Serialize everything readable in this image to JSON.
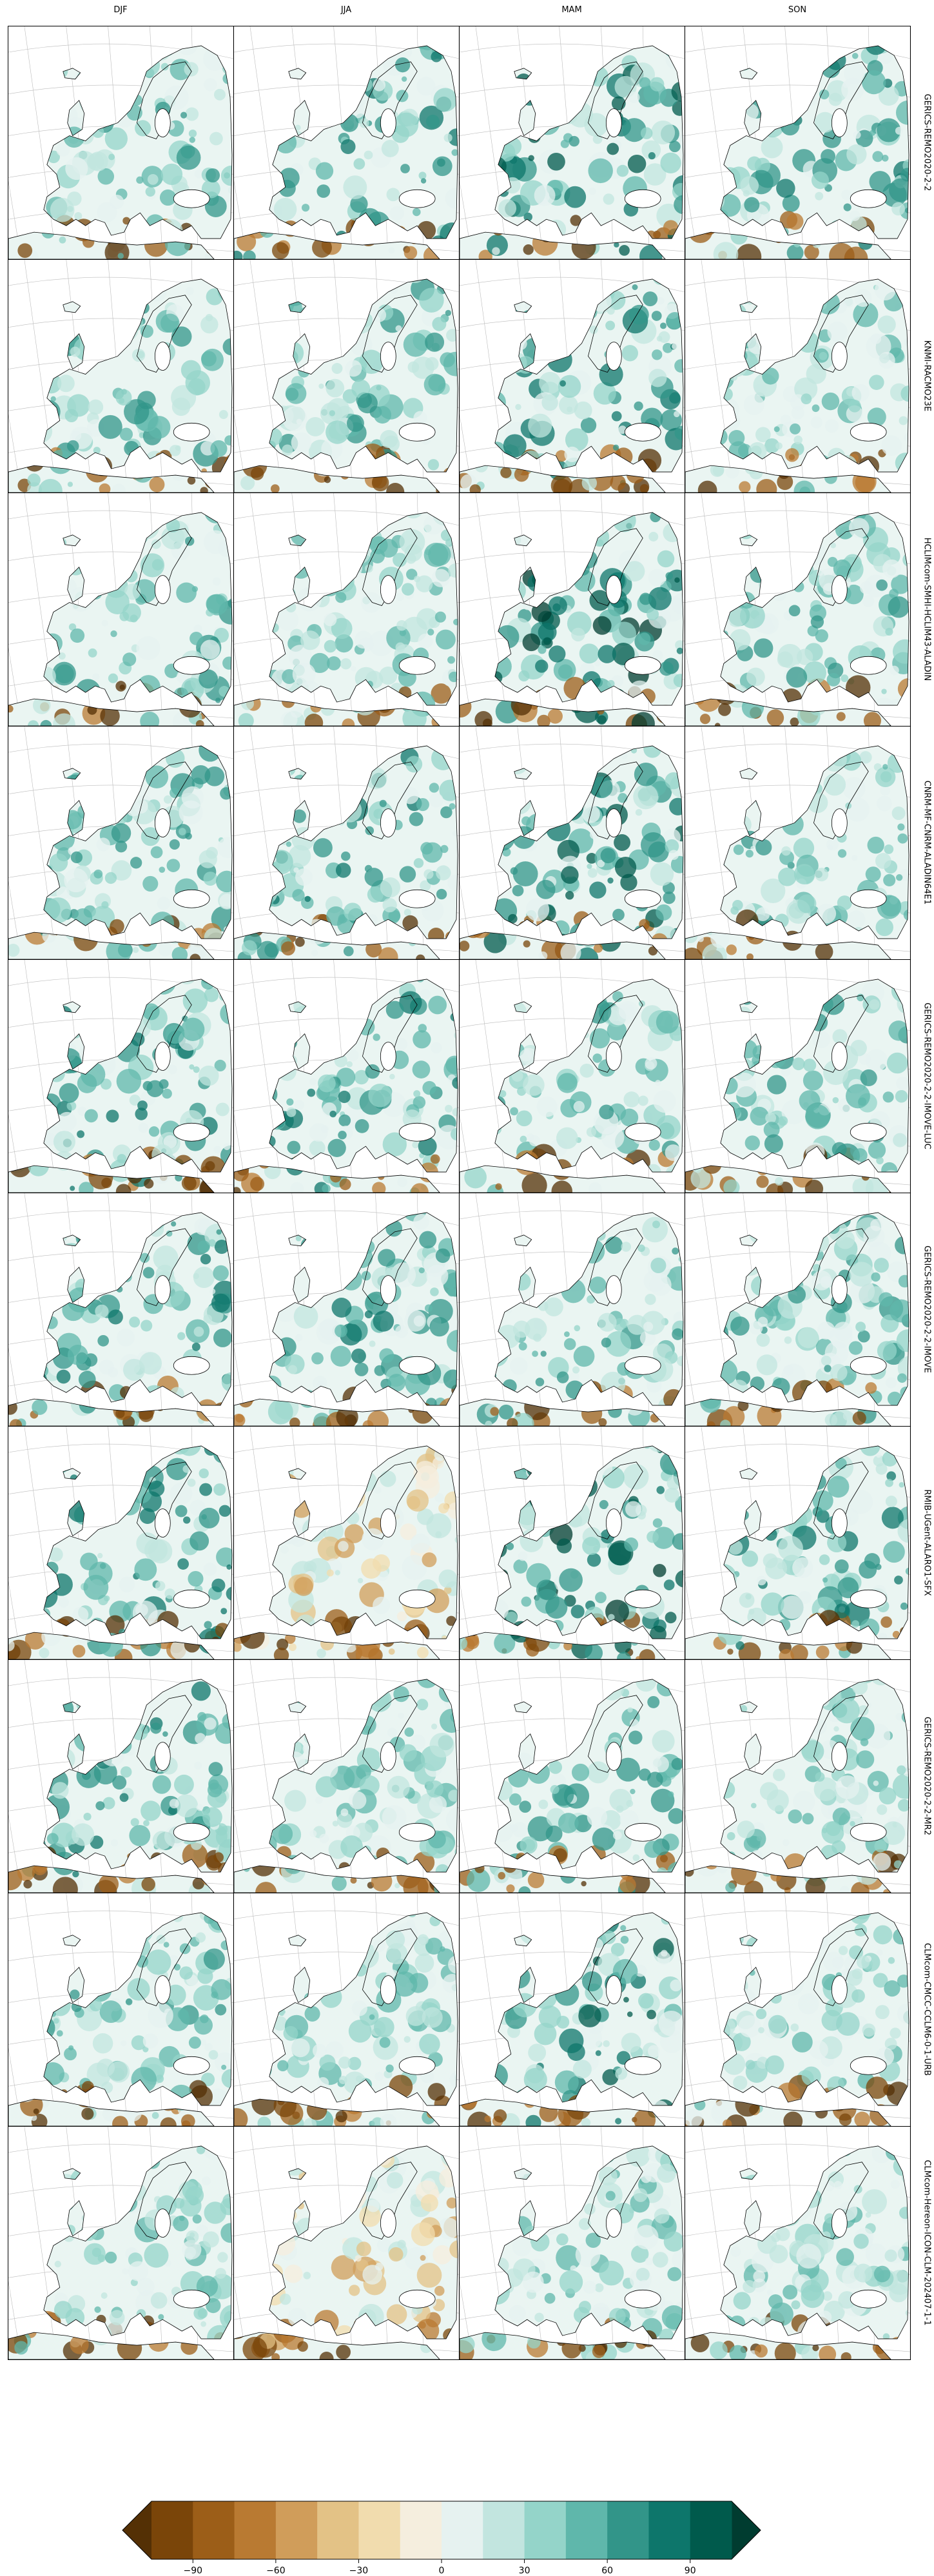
{
  "columns": [
    "DJF",
    "JJA",
    "MAM",
    "SON"
  ],
  "rows": [
    "GERICS-REMO2020-2-2",
    "KNMI-RACMO23E",
    "HCLIMcom-SMHI-HCLIM43-ALADIN",
    "CNRM-MF-CNRM-ALADIN64E1",
    "GERICS-REMO2020-2-2-IMOVE-LUC",
    "GERICS-REMO2020-2-2-IMOVE",
    "RMIB-UGent-ALARO1-SFX",
    "GERICS-REMO2020-2-2-MR2",
    "CLMcom-CMCC-CCLM6-0-1-URB",
    "CLMcom-Hereon-ICON-CLM-202407-1-1"
  ],
  "chart_data": {
    "type": "heatmap",
    "title": "",
    "panel_grid": {
      "rows": 10,
      "cols": 4
    },
    "map_region": "Europe",
    "colorbar": {
      "orientation": "horizontal",
      "extend": "both",
      "min": -105,
      "max": 105,
      "levels": [
        -105,
        -90,
        -75,
        -60,
        -45,
        -30,
        -15,
        0,
        15,
        30,
        45,
        60,
        75,
        90,
        105
      ],
      "ticks": [
        -90,
        -60,
        -30,
        0,
        30,
        60,
        90
      ],
      "tick_labels": [
        "−90",
        "−60",
        "−30",
        "0",
        "30",
        "60",
        "90"
      ],
      "colormap": "BrBG",
      "colors": [
        "#543005",
        "#7a4509",
        "#9c5e18",
        "#b97a32",
        "#d09d5a",
        "#e3c286",
        "#f1dcae",
        "#f5eede",
        "#e6f2f0",
        "#c2e5df",
        "#94d4c9",
        "#5fb7ab",
        "#329589",
        "#0d766b",
        "#005a4c",
        "#003c30"
      ]
    },
    "panel_intensity": [
      [
        0.45,
        0.55,
        0.7,
        0.55
      ],
      [
        0.5,
        0.45,
        0.6,
        0.4
      ],
      [
        0.45,
        0.4,
        0.75,
        0.45
      ],
      [
        0.5,
        0.55,
        0.7,
        0.45
      ],
      [
        0.6,
        0.55,
        0.45,
        0.5
      ],
      [
        0.55,
        0.55,
        0.5,
        0.5
      ],
      [
        0.6,
        0.2,
        0.75,
        0.55
      ],
      [
        0.55,
        0.4,
        0.5,
        0.4
      ],
      [
        0.45,
        0.4,
        0.7,
        0.4
      ],
      [
        0.4,
        0.2,
        0.4,
        0.35
      ]
    ]
  }
}
